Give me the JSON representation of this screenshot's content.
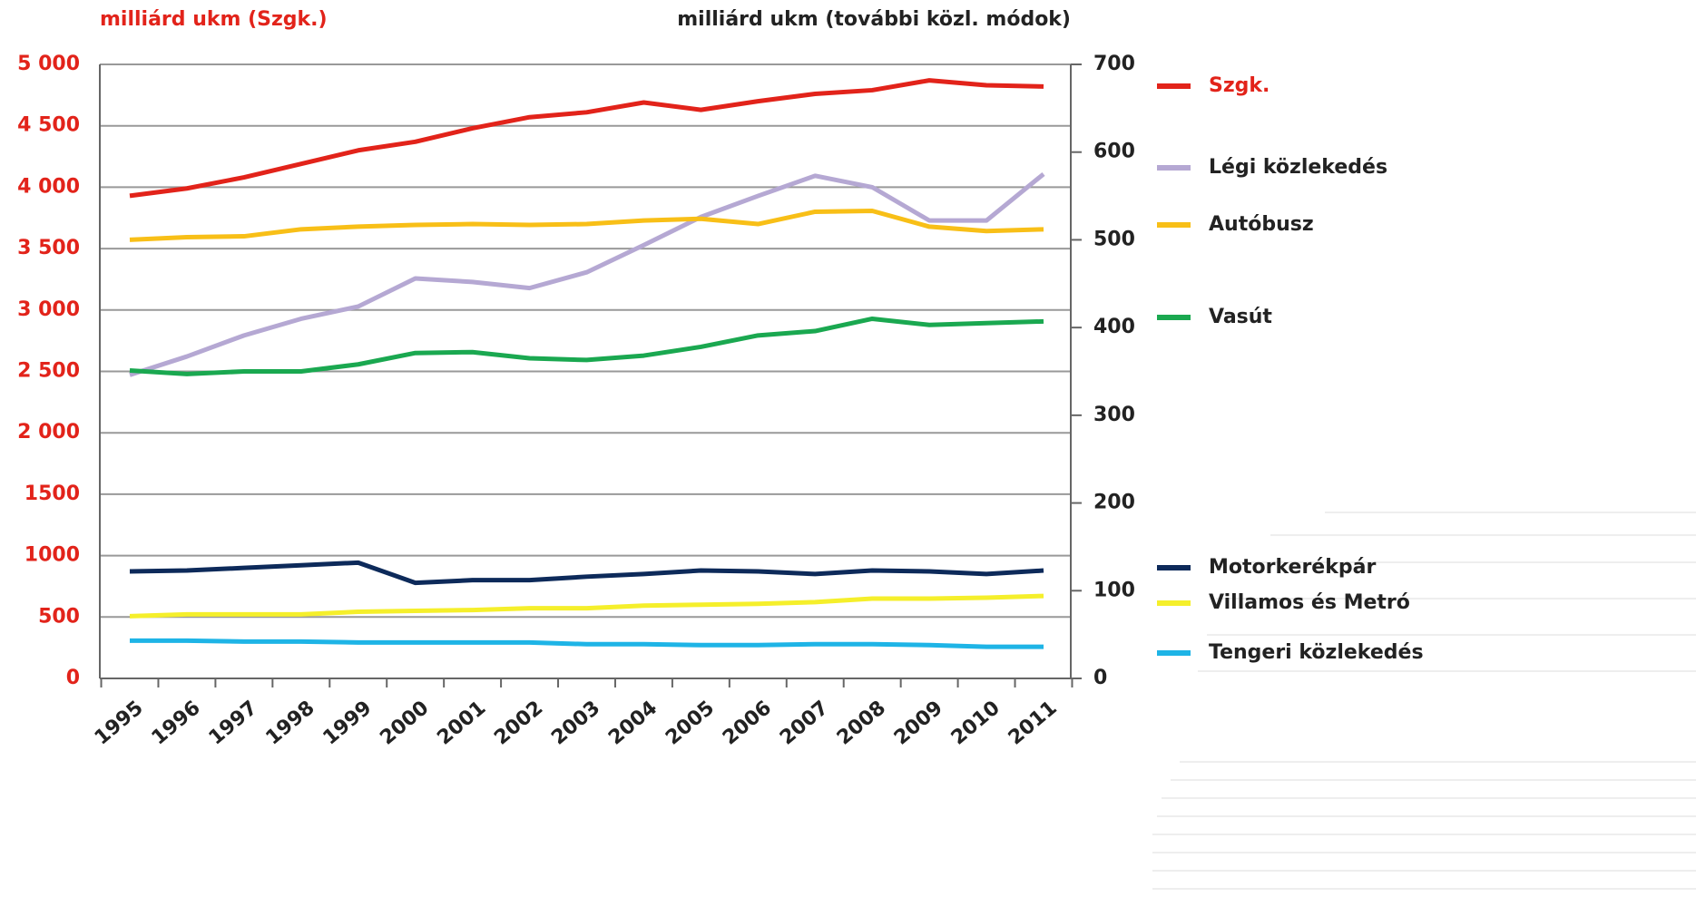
{
  "chart_data": {
    "type": "line",
    "y_label": "milliárd ukm (Szgk.)",
    "y2_label": "milliárd ukm (további közl. módok)",
    "categories": [
      "1995",
      "1996",
      "1997",
      "1998",
      "1999",
      "2000",
      "2001",
      "2002",
      "2003",
      "2004",
      "2005",
      "2006",
      "2007",
      "2008",
      "2009",
      "2010",
      "2011"
    ],
    "ylim": [
      0,
      5000
    ],
    "yticks": [
      0,
      500,
      1000,
      1500,
      {
        "value": 2000,
        "label": "2 000"
      },
      {
        "value": 2500,
        "label": "2 500"
      },
      {
        "value": 3000,
        "label": "3 000"
      },
      {
        "value": 3500,
        "label": "3 500"
      },
      {
        "value": 4000,
        "label": "4 000"
      },
      {
        "value": 4500,
        "label": "4 500"
      },
      {
        "value": 5000,
        "label": "5 000"
      }
    ],
    "y2lim": [
      0,
      700
    ],
    "y2ticks": [
      0,
      100,
      200,
      300,
      400,
      500,
      600,
      700
    ],
    "grid": true,
    "legend": "right",
    "series": [
      {
        "name": "Szgk.",
        "color": "#e2231a",
        "axis": "y",
        "values": [
          3930,
          3990,
          4080,
          4190,
          4300,
          4370,
          4480,
          4570,
          4610,
          4690,
          4630,
          4700,
          4760,
          4790,
          4870,
          4830,
          4820
        ]
      },
      {
        "name": "Légi közlekedés",
        "color": "#b5a8d3",
        "axis": "y2",
        "values": [
          346,
          367,
          391,
          410,
          424,
          456,
          452,
          445,
          463,
          494,
          526,
          550,
          573,
          560,
          522,
          522,
          575
        ]
      },
      {
        "name": "Autóbusz",
        "color": "#f8bf17",
        "axis": "y2",
        "values": [
          500,
          503,
          504,
          512,
          515,
          517,
          518,
          517,
          518,
          522,
          524,
          518,
          532,
          533,
          515,
          510,
          512
        ]
      },
      {
        "name": "Vasút",
        "color": "#1aa850",
        "axis": "y2",
        "values": [
          351,
          347,
          350,
          350,
          358,
          371,
          372,
          365,
          363,
          368,
          378,
          391,
          396,
          410,
          403,
          405,
          407
        ]
      },
      {
        "name": "Motorkerékpár",
        "color": "#0d2a5a",
        "axis": "y2",
        "values": [
          122,
          123,
          126,
          129,
          132,
          109,
          112,
          112,
          116,
          119,
          123,
          122,
          119,
          123,
          122,
          119,
          123
        ]
      },
      {
        "name": "Villamos és Metró",
        "color": "#f5ef2b",
        "axis": "y2",
        "values": [
          71,
          73,
          73,
          73,
          76,
          77,
          78,
          80,
          80,
          83,
          84,
          85,
          87,
          91,
          91,
          92,
          94
        ]
      },
      {
        "name": "Tengeri közlekedés",
        "color": "#1eb4e6",
        "axis": "y2",
        "values": [
          43,
          43,
          42,
          42,
          41,
          41,
          41,
          41,
          39,
          39,
          38,
          38,
          39,
          39,
          38,
          36,
          36
        ]
      }
    ]
  }
}
